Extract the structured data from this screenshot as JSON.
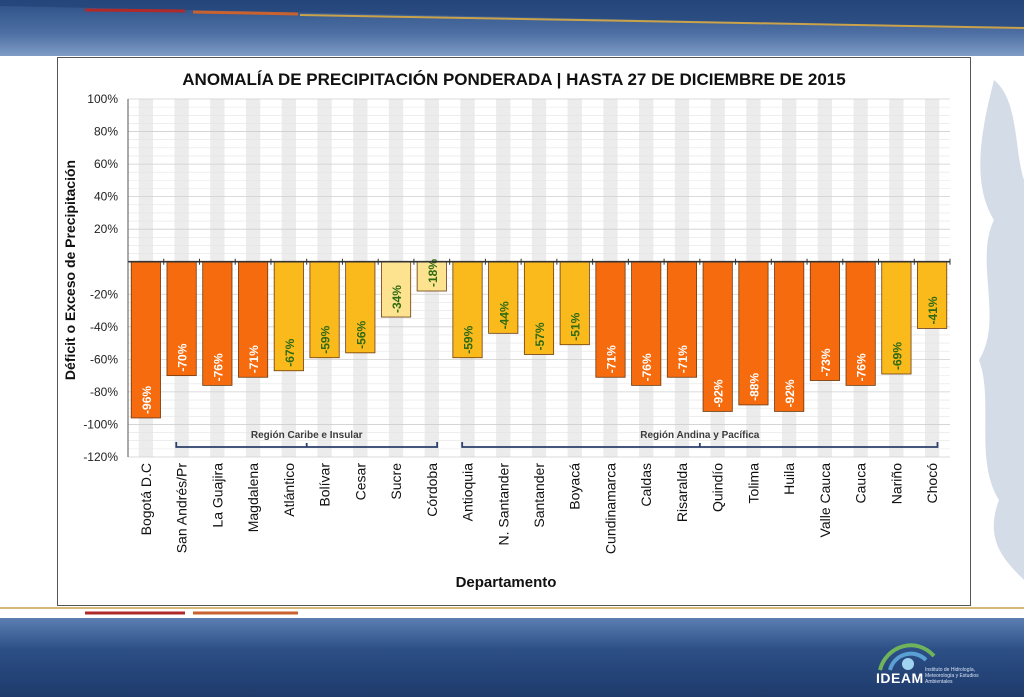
{
  "colors": {
    "dark_orange": "#f56b0e",
    "orange": "#f29a1d",
    "gold": "#fbba1c",
    "light_gold": "#fde38f",
    "label_green": "#2e6a12",
    "label_white": "#ffffff"
  },
  "logo": {
    "text": "IDEAM",
    "subtext": "Instituto de Hidrología, Meteorología y Estudios Ambientales"
  },
  "chart_data": {
    "type": "bar",
    "title": "ANOMALÍA DE PRECIPITACIÓN PONDERADA | HASTA 27 DE DICIEMBRE DE 2015",
    "xlabel": "Departamento",
    "ylabel": "Déficit o Exceso de Precipitación",
    "ylim": [
      -120,
      100
    ],
    "yticks": [
      {
        "v": 100,
        "label": "100%"
      },
      {
        "v": 80,
        "label": "80%"
      },
      {
        "v": 60,
        "label": "60%"
      },
      {
        "v": 40,
        "label": "40%"
      },
      {
        "v": 20,
        "label": "20%"
      },
      {
        "v": 0,
        "label": ""
      },
      {
        "v": -20,
        "label": "-20%"
      },
      {
        "v": -40,
        "label": "-40%"
      },
      {
        "v": -60,
        "label": "-60%"
      },
      {
        "v": -80,
        "label": "-80%"
      },
      {
        "v": -100,
        "label": "-100%"
      },
      {
        "v": -120,
        "label": "-120%"
      }
    ],
    "grid": true,
    "categories": [
      "Bogotá D.C",
      "San Andrés/Pr",
      "La Guajira",
      "Magdalena",
      "Atlántico",
      "Bolívar",
      "Cesar",
      "Sucre",
      "Córdoba",
      "Antioquia",
      "N. Santander",
      "Santander",
      "Boyacá",
      "Cundinamarca",
      "Caldas",
      "Risaralda",
      "Quindío",
      "Tolima",
      "Huila",
      "Valle Cauca",
      "Cauca",
      "Nariño",
      "Chocó"
    ],
    "values": [
      -96,
      -70,
      -76,
      -71,
      -67,
      -59,
      -56,
      -34,
      -18,
      -59,
      -44,
      -57,
      -51,
      -71,
      -76,
      -71,
      -92,
      -88,
      -92,
      -73,
      -76,
      -69,
      -41
    ],
    "data_labels": [
      "-96%",
      "-70%",
      "-76%",
      "-71%",
      "-67%",
      "-59%",
      "-56%",
      "-34%",
      "-18%",
      "-59%",
      "-44%",
      "-57%",
      "-51%",
      "-71%",
      "-76%",
      "-71%",
      "-92%",
      "-88%",
      "-92%",
      "-73%",
      "-76%",
      "-69%",
      "-41%"
    ],
    "bar_colors": [
      "dark_orange",
      "dark_orange",
      "dark_orange",
      "dark_orange",
      "gold",
      "gold",
      "gold",
      "light_gold",
      "light_gold",
      "gold",
      "gold",
      "gold",
      "gold",
      "dark_orange",
      "dark_orange",
      "dark_orange",
      "dark_orange",
      "dark_orange",
      "dark_orange",
      "dark_orange",
      "dark_orange",
      "gold",
      "gold"
    ],
    "label_colors": [
      "label_white",
      "label_white",
      "label_white",
      "label_white",
      "label_green",
      "label_green",
      "label_green",
      "label_green",
      "label_green",
      "label_green",
      "label_green",
      "label_green",
      "label_green",
      "label_white",
      "label_white",
      "label_white",
      "label_white",
      "label_white",
      "label_white",
      "label_white",
      "label_white",
      "label_green",
      "label_green"
    ],
    "regions": [
      {
        "name": "Región Caribe e Insular",
        "start": 1,
        "end": 8
      },
      {
        "name": "Región Andina y Pacífica",
        "start": 9,
        "end": 22
      }
    ]
  }
}
